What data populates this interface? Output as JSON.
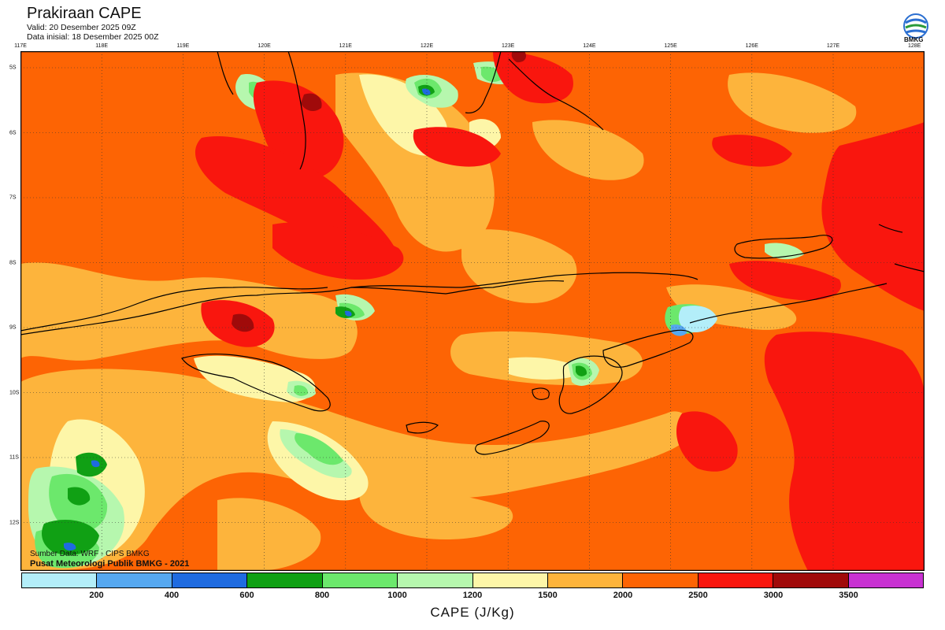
{
  "header": {
    "title": "Prakiraan CAPE",
    "valid": "Valid: 20 Desember 2025 09Z",
    "init": "Data inisial: 18 Desember 2025 00Z",
    "logo_text": "BMKG"
  },
  "axes": {
    "longitudes": [
      "117E",
      "118E",
      "119E",
      "120E",
      "121E",
      "122E",
      "123E",
      "124E",
      "125E",
      "126E",
      "127E",
      "128E"
    ],
    "latitudes": [
      "5S",
      "6S",
      "7S",
      "8S",
      "9S",
      "10S",
      "11S",
      "12S"
    ]
  },
  "footer": {
    "source": "Sumber Data: WRF - CIPS BMKG",
    "agency": "Pusat Meteorologi Publik BMKG - 2021"
  },
  "legend": {
    "title": "CAPE (J/Kg)",
    "colors": [
      "#b3eef9",
      "#56a8f0",
      "#1f6be0",
      "#10a014",
      "#6ce86c",
      "#b6f7ae",
      "#fdf6a8",
      "#fdb43c",
      "#fd6404",
      "#f9160e",
      "#a00a0a",
      "#c832d2"
    ],
    "ticks": [
      "200",
      "400",
      "600",
      "800",
      "1000",
      "1200",
      "1500",
      "2000",
      "2500",
      "3000",
      "3500"
    ]
  },
  "colors": {
    "base_field": "#fd6404",
    "moderate": "#fdb43c",
    "low": "#fdf6a8",
    "high": "#f9160e",
    "very_high": "#a00a0a",
    "green_light": "#b6f7ae",
    "green": "#6ce86c",
    "green_dark": "#10a014",
    "blue": "#1f6be0",
    "blue_mid": "#56a8f0",
    "cyan": "#b3eef9"
  }
}
